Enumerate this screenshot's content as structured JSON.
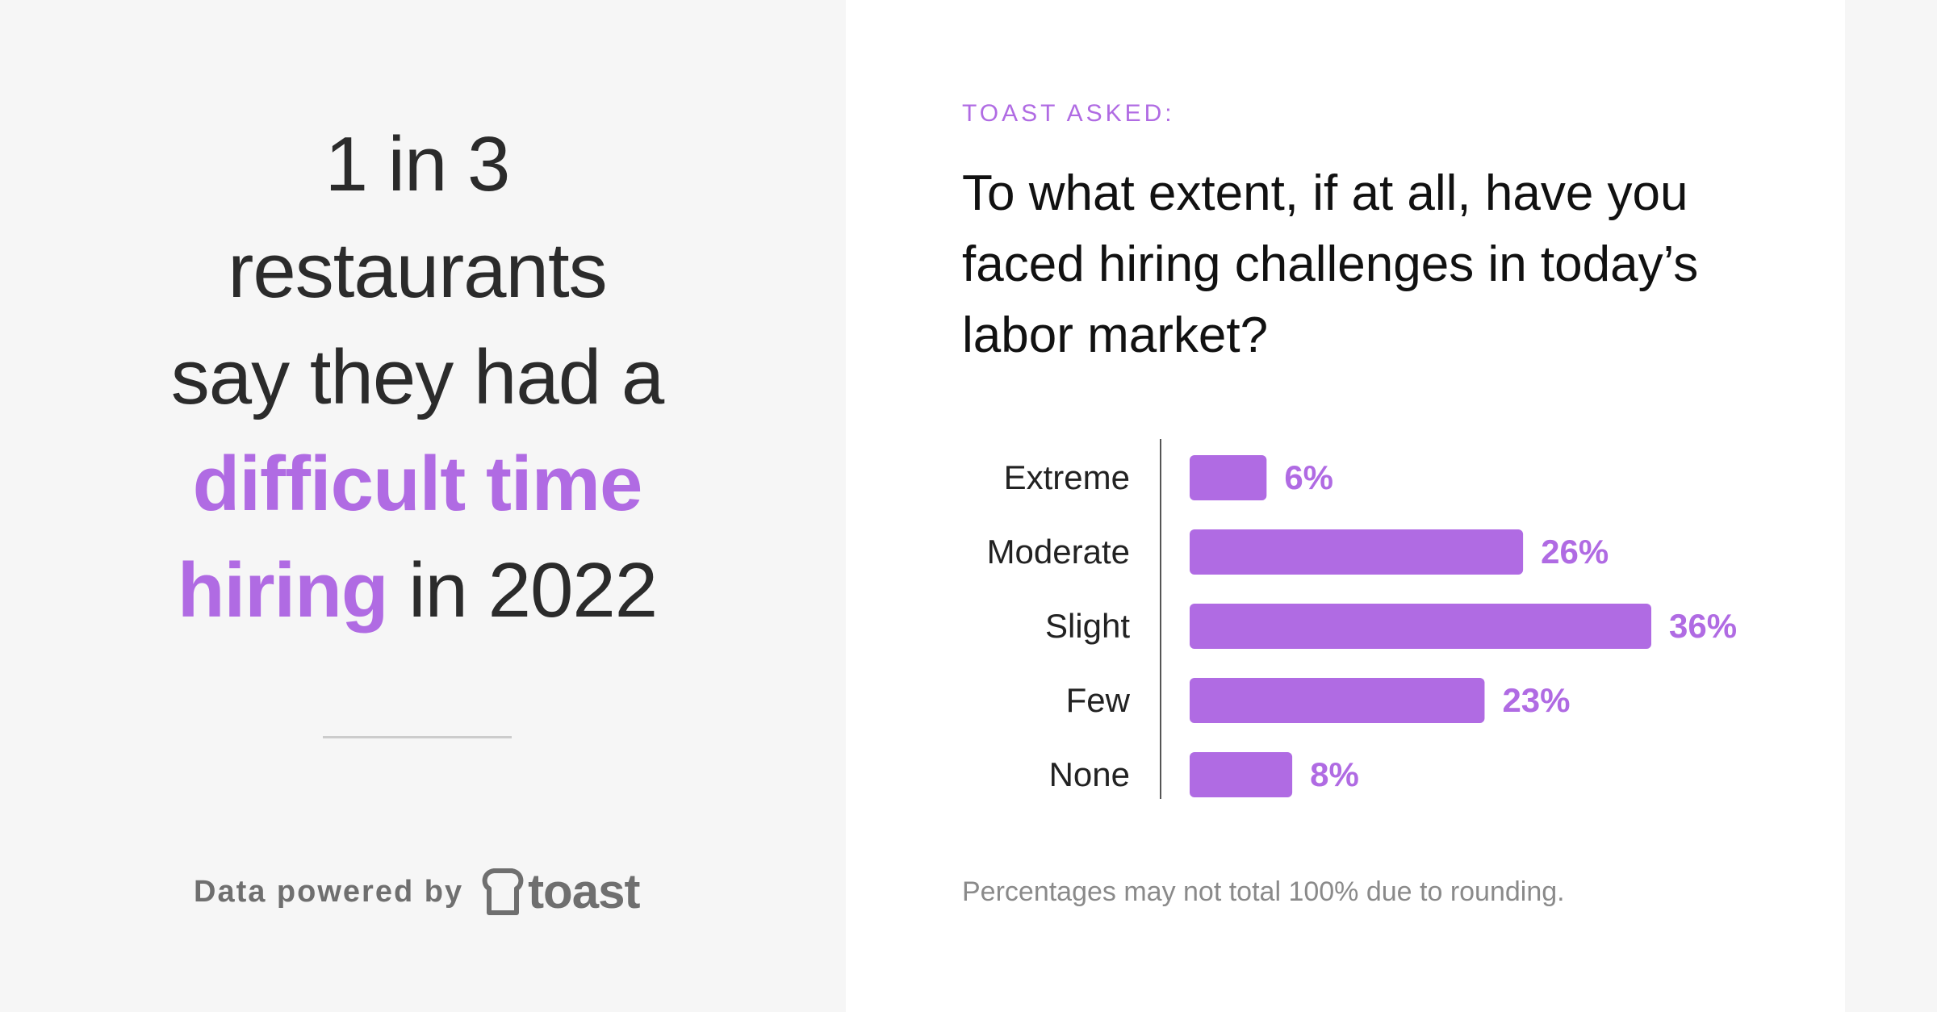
{
  "headline": {
    "line1": "1 in 3",
    "line2": "restaurants",
    "line3": "say they had a",
    "highlight1": "difficult time",
    "highlight2": "hiring",
    "tail": " in 2022"
  },
  "footer": {
    "powered_by": "Data powered by",
    "logo_text": "toast"
  },
  "panel": {
    "asked_label": "TOAST ASKED:",
    "question": "To what extent, if at all, have you faced hiring challenges in today’s labor market?",
    "footnote": "Percentages may not total 100% due to rounding."
  },
  "colors": {
    "accent": "#b06be3",
    "text_dark": "#2b2b2b",
    "muted": "#8a8a8a"
  },
  "chart_data": {
    "type": "bar",
    "orientation": "horizontal",
    "title": "To what extent, if at all, have you faced hiring challenges in today’s labor market?",
    "categories": [
      "Extreme",
      "Moderate",
      "Slight",
      "Few",
      "None"
    ],
    "values": [
      6,
      26,
      36,
      23,
      8
    ],
    "value_labels": [
      "6%",
      "26%",
      "36%",
      "23%",
      "8%"
    ],
    "unit": "%",
    "xlim": [
      0,
      36
    ],
    "grid": false,
    "legend": "none"
  }
}
